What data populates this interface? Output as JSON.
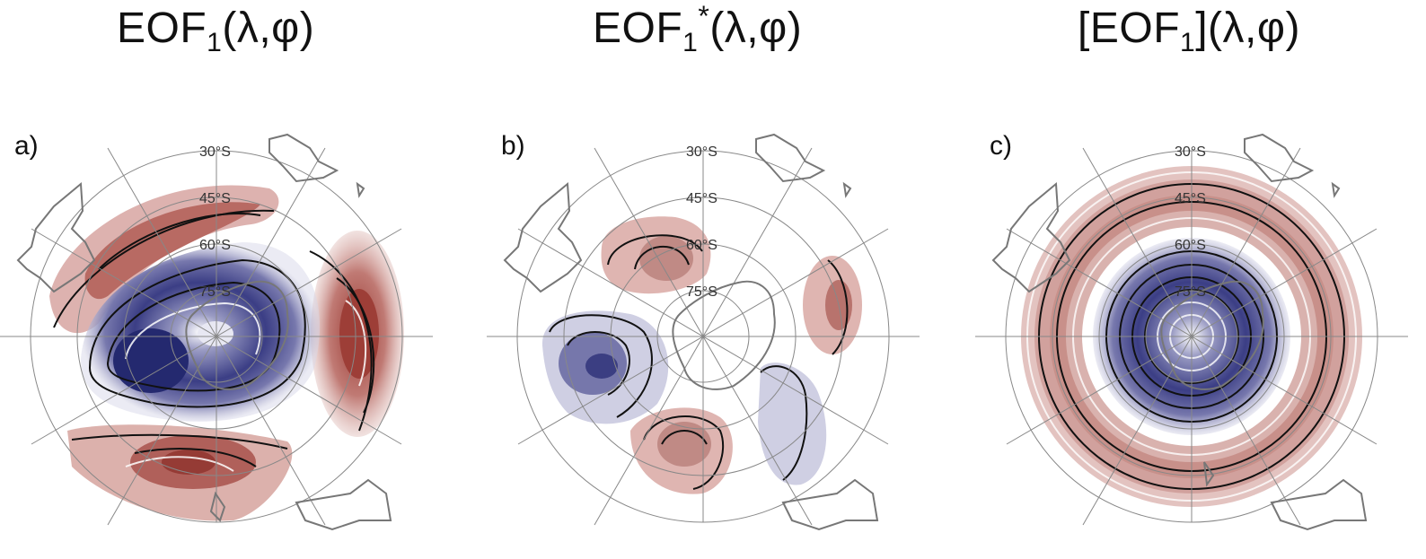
{
  "titles": [
    {
      "main": "EOF",
      "sub": "1",
      "sup": "",
      "rest": "(λ,φ)",
      "pre": ""
    },
    {
      "main": "EOF",
      "sub": "1",
      "sup": "*",
      "rest": "(λ,φ)",
      "pre": ""
    },
    {
      "main": "EOF",
      "sub": "1",
      "sup": "",
      "rest": "](λ,φ)",
      "pre": "["
    }
  ],
  "panels": [
    "a)",
    "b)",
    "c)"
  ],
  "latitudes": [
    "30°S",
    "45°S",
    "60°S",
    "75°S"
  ],
  "colors": {
    "positive": "#a0453f",
    "negative": "#2b2f7a",
    "land": "#777777",
    "grid": "#888888"
  }
}
